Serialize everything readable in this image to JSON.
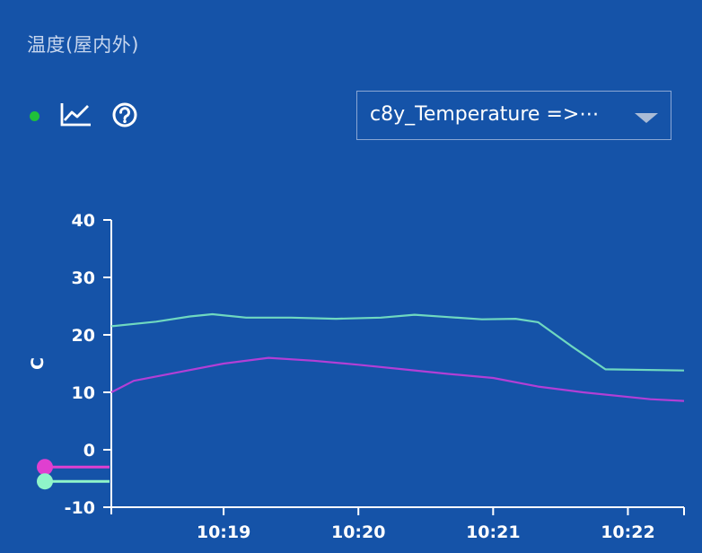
{
  "widget": {
    "title": "温度(屋内外)",
    "status_color": "#1fc03a"
  },
  "toolbar": {
    "icons": [
      "status-dot",
      "line-chart-icon",
      "help-icon"
    ]
  },
  "selector": {
    "value": "c8y_Temperature =>⋯"
  },
  "chart_data": {
    "type": "line",
    "ylabel": "C",
    "ylim": [
      -10,
      40
    ],
    "yticks": [
      "40",
      "30",
      "20",
      "10",
      "0",
      "-10"
    ],
    "xticks": [
      "10:19",
      "10:20",
      "10:21",
      "10:22"
    ],
    "x_range": [
      "10:18:10",
      "10:22:25"
    ],
    "series": [
      {
        "color": "#6fd8c0",
        "marker_color": "#8ff5c9",
        "x": [
          "10:18:10",
          "10:18:30",
          "10:18:45",
          "10:18:55",
          "10:19:10",
          "10:19:30",
          "10:19:50",
          "10:20:10",
          "10:20:25",
          "10:20:40",
          "10:20:55",
          "10:21:10",
          "10:21:20",
          "10:21:35",
          "10:21:50",
          "10:22:25"
        ],
        "values": [
          21.5,
          22.3,
          23.2,
          23.6,
          23.0,
          23.0,
          22.8,
          23.0,
          23.5,
          23.1,
          22.7,
          22.8,
          22.2,
          18.0,
          14.0,
          13.8
        ]
      },
      {
        "color": "#b23fd6",
        "marker_color": "#e03fd0",
        "x": [
          "10:18:10",
          "10:18:20",
          "10:18:40",
          "10:19:00",
          "10:19:20",
          "10:19:40",
          "10:20:00",
          "10:20:20",
          "10:20:40",
          "10:21:00",
          "10:21:20",
          "10:21:40",
          "10:22:10",
          "10:22:25"
        ],
        "values": [
          10.0,
          12.0,
          13.5,
          15.0,
          16.0,
          15.5,
          14.8,
          14.0,
          13.2,
          12.5,
          11.0,
          10.0,
          8.8,
          8.5
        ]
      }
    ],
    "legend_markers": [
      {
        "color": "#e03fd0",
        "value": -3
      },
      {
        "color": "#8ff5c9",
        "value": -5.5
      }
    ]
  }
}
